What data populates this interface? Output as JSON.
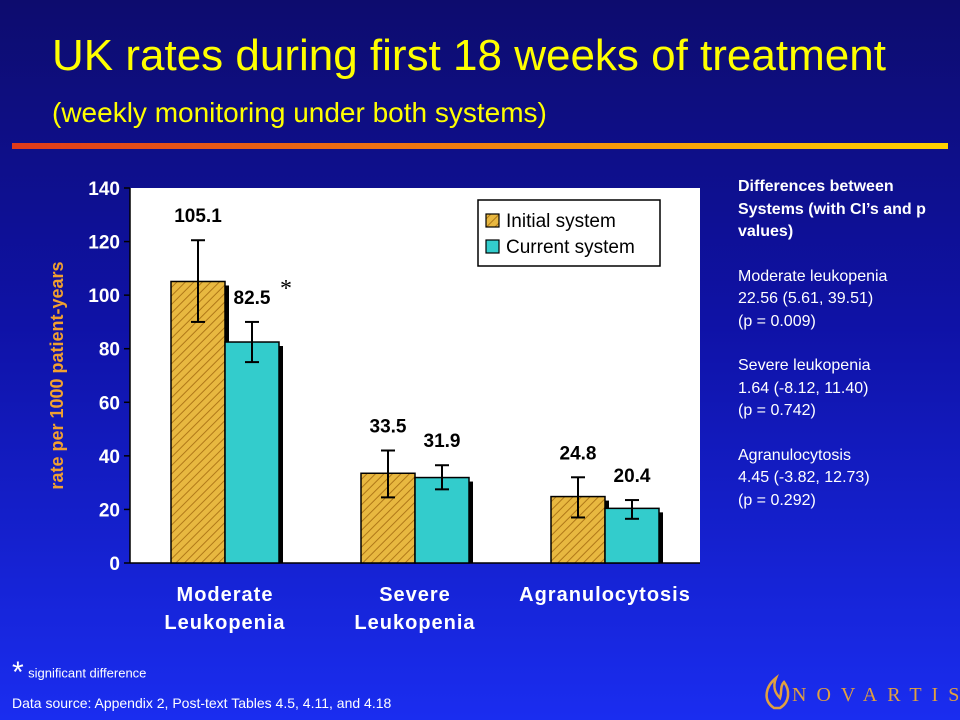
{
  "title": {
    "main": "UK rates during first 18 weeks of treatment",
    "sub": "(weekly monitoring under both systems)"
  },
  "chart_data": {
    "type": "bar",
    "categories": [
      [
        "Moderate",
        "Leukopenia"
      ],
      [
        "Severe",
        "Leukopenia"
      ],
      [
        "Agranulocytosis"
      ]
    ],
    "series": [
      {
        "name": "Initial system",
        "values": [
          105.1,
          33.5,
          24.8
        ],
        "err_low": [
          90,
          24.5,
          17
        ],
        "err_high": [
          120.5,
          42,
          32
        ],
        "color": "#e8b840"
      },
      {
        "name": "Current system",
        "values": [
          82.5,
          31.9,
          20.4
        ],
        "err_low": [
          75,
          27.5,
          16.5
        ],
        "err_high": [
          90,
          36.5,
          23.5
        ],
        "color": "#33cccc"
      }
    ],
    "data_labels": [
      [
        "105.1",
        "82.5"
      ],
      [
        "33.5",
        "31.9"
      ],
      [
        "24.8",
        "20.4"
      ]
    ],
    "significance_marker": "*",
    "ylabel": "rate per 1000 patient-years",
    "ylim": [
      0,
      140
    ],
    "yticks": [
      "0",
      "20",
      "40",
      "60",
      "80",
      "100",
      "120",
      "140"
    ],
    "grid": false,
    "legend_position": "top-right"
  },
  "sidebar": {
    "heading": "Differences between Systems (with CI’s and p values)",
    "items": [
      {
        "name": "Moderate leukopenia",
        "ci": "22.56 (5.61, 39.51)",
        "p": "(p = 0.009)"
      },
      {
        "name": "Severe leukopenia",
        "ci": "1.64 (-8.12, 11.40)",
        "p": "(p = 0.742)"
      },
      {
        "name": "Agranulocytosis",
        "ci": "4.45 (-3.82, 12.73)",
        "p": "(p = 0.292)"
      }
    ]
  },
  "footnote": {
    "star": "*",
    "text": "significant difference"
  },
  "source": "Data source: Appendix 2, Post-text Tables 4.5, 4.11, and 4.18",
  "logo": {
    "text": "NOVARTIS",
    "icon": "flame-icon"
  },
  "colors": {
    "title": "#ffff00",
    "axis_text": "#ffffff",
    "ylabel": "#f0a030",
    "plot_bg": "#ffffff",
    "rule_start": "#e03a1a",
    "rule_end": "#ffd200"
  }
}
